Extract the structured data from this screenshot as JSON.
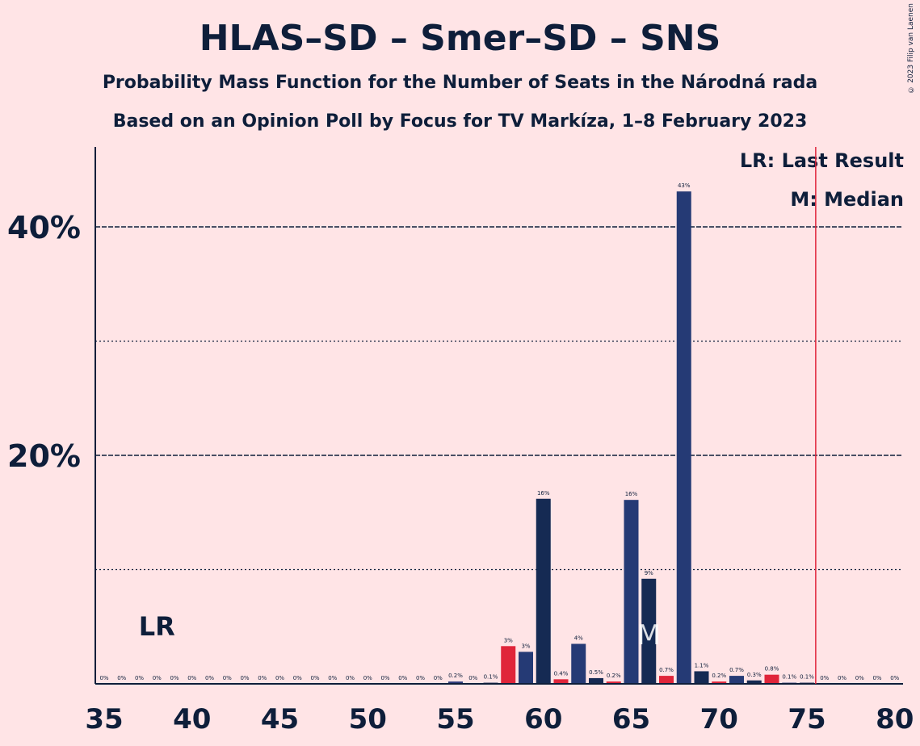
{
  "header": {
    "title": "HLAS–SD – Smer–SD – SNS",
    "subtitle1": "Probability Mass Function for the Number of Seats in the Národná rada",
    "subtitle2": "Based on an Opinion Poll by Focus for TV Markíza, 1–8 February 2023",
    "copyright": "© 2023 Filip van Laenen"
  },
  "legend": {
    "lr": "LR: Last Result",
    "m": "M: Median"
  },
  "chart_data": {
    "type": "bar",
    "x": [
      35,
      36,
      37,
      38,
      39,
      40,
      41,
      42,
      43,
      44,
      45,
      46,
      47,
      48,
      49,
      50,
      51,
      52,
      53,
      54,
      55,
      56,
      57,
      58,
      59,
      60,
      61,
      62,
      63,
      64,
      65,
      66,
      67,
      68,
      69,
      70,
      71,
      72,
      73,
      74,
      75,
      76,
      77,
      78,
      79,
      80
    ],
    "values": [
      0,
      0,
      0,
      0,
      0,
      0,
      0,
      0,
      0,
      0,
      0,
      0,
      0,
      0,
      0,
      0,
      0,
      0,
      0,
      0,
      0.2,
      0,
      0.1,
      3.3,
      2.8,
      16.2,
      0.4,
      3.5,
      0.5,
      0.2,
      16.1,
      9.2,
      0.7,
      43.1,
      1.1,
      0.2,
      0.7,
      0.3,
      0.8,
      0.1,
      0.1,
      0,
      0,
      0,
      0,
      0
    ],
    "labels": [
      "0%",
      "0%",
      "0%",
      "0%",
      "0%",
      "0%",
      "0%",
      "0%",
      "0%",
      "0%",
      "0%",
      "0%",
      "0%",
      "0%",
      "0%",
      "0%",
      "0%",
      "0%",
      "0%",
      "0%",
      "0.2%",
      "0%",
      "0.1%",
      "3%",
      "3%",
      "16%",
      "0.4%",
      "4%",
      "0.5%",
      "0.2%",
      "16%",
      "9%",
      "0.7%",
      "43%",
      "1.1%",
      "0.2%",
      "0.7%",
      "0.3%",
      "0.8%",
      "0.1%",
      "0.1%",
      "0%",
      "0%",
      "0%",
      "0%",
      "0%"
    ],
    "colors": [
      "#2D3B7B",
      "#E0253A",
      "#152A53",
      "#253A75",
      "#2D3B7B",
      "#E0253A",
      "#152A53",
      "#253A75",
      "#2D3B7B",
      "#E0253A",
      "#152A53",
      "#253A75",
      "#2D3B7B",
      "#E0253A",
      "#152A53",
      "#253A75",
      "#2D3B7B",
      "#E0253A",
      "#152A53",
      "#253A75",
      "#2D3B7B",
      "#E0253A",
      "#152A53",
      "#E0253A",
      "#253A75",
      "#152A53",
      "#E0253A",
      "#253A75",
      "#152A53",
      "#E0253A",
      "#253A75",
      "#152A53",
      "#E0253A",
      "#253A75",
      "#152A53",
      "#E0253A",
      "#253A75",
      "#152A53",
      "#E0253A",
      "#253A75",
      "#152A53",
      "#E0253A",
      "#253A75",
      "#2D3B7B",
      "#E0253A",
      "#152A53"
    ],
    "xticks": [
      35,
      40,
      45,
      50,
      55,
      60,
      65,
      70,
      75,
      80
    ],
    "yticks": [
      {
        "value": 20,
        "label": "20%"
      },
      {
        "value": 40,
        "label": "40%"
      }
    ],
    "minor_yticks": [
      10,
      30
    ],
    "ylim": [
      0,
      47
    ],
    "last_result": 38,
    "last_result_label": "LR",
    "median": 66,
    "median_label": "M",
    "majority_line": 75.5,
    "colors_style": {
      "line": "#E0253A",
      "axis": "#0E1E3A"
    }
  }
}
